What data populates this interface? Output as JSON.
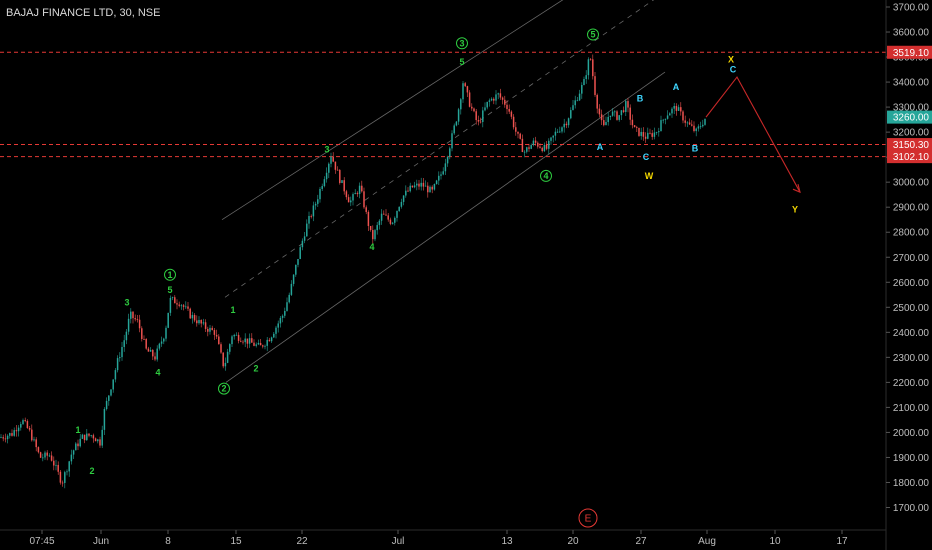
{
  "title": "BAJAJ FINANCE LTD, 30, NSE",
  "colors": {
    "background": "#000000",
    "up": "#26a69a",
    "down": "#ef5350",
    "price_tag": "#26a69a",
    "level_line": "#e53935",
    "level_tag": "#d32f2f",
    "channel": "#8a8a8a",
    "wave_green": "#2ecc40",
    "wave_yellow": "#f2d600",
    "wave_cyan": "#3fd6ff",
    "projection": "#c62828",
    "axis_text": "#bfbfbf"
  },
  "chart_data": {
    "type": "candlestick",
    "symbol": "BAJAJ FINANCE LTD",
    "interval": "30",
    "exchange": "NSE",
    "ylim": [
      1620,
      3760
    ],
    "y_ticks": [
      1700,
      1800,
      1900,
      2000,
      2100,
      2200,
      2300,
      2400,
      2500,
      2600,
      2700,
      2800,
      2900,
      3000,
      3100,
      3200,
      3300,
      3400,
      3500,
      3600,
      3700
    ],
    "y_tick_labels": [
      "1700.00",
      "1800.00",
      "1900.00",
      "2000.00",
      "2100.00",
      "2200.00",
      "2300.00",
      "2400.00",
      "2500.00",
      "2600.00",
      "2700.00",
      "2800.00",
      "2900.00",
      "3000.00",
      "3100.00",
      "3200.00",
      "3300.00",
      "3400.00",
      "3500.00",
      "3600.00",
      "3700.00"
    ],
    "x_labels": [
      "07:45",
      "Jun",
      "8",
      "15",
      "22",
      "Jul",
      "13",
      "20",
      "27",
      "Aug",
      "10",
      "17"
    ],
    "price_path": [
      [
        0,
        1980
      ],
      [
        12,
        1995
      ],
      [
        22,
        2050
      ],
      [
        30,
        2000
      ],
      [
        40,
        1900
      ],
      [
        50,
        1910
      ],
      [
        62,
        1800
      ],
      [
        72,
        1920
      ],
      [
        82,
        1980
      ],
      [
        92,
        1990
      ],
      [
        100,
        1960
      ],
      [
        104,
        2080
      ],
      [
        112,
        2200
      ],
      [
        118,
        2290
      ],
      [
        125,
        2380
      ],
      [
        130,
        2470
      ],
      [
        138,
        2440
      ],
      [
        146,
        2330
      ],
      [
        155,
        2300
      ],
      [
        165,
        2400
      ],
      [
        170,
        2530
      ],
      [
        180,
        2520
      ],
      [
        190,
        2470
      ],
      [
        205,
        2420
      ],
      [
        215,
        2400
      ],
      [
        224,
        2260
      ],
      [
        232,
        2390
      ],
      [
        240,
        2380
      ],
      [
        250,
        2360
      ],
      [
        260,
        2340
      ],
      [
        270,
        2380
      ],
      [
        283,
        2470
      ],
      [
        290,
        2560
      ],
      [
        298,
        2700
      ],
      [
        306,
        2820
      ],
      [
        316,
        2920
      ],
      [
        324,
        3020
      ],
      [
        331,
        3110
      ],
      [
        340,
        3010
      ],
      [
        350,
        2920
      ],
      [
        360,
        2980
      ],
      [
        372,
        2770
      ],
      [
        382,
        2870
      ],
      [
        392,
        2840
      ],
      [
        402,
        2940
      ],
      [
        412,
        2980
      ],
      [
        422,
        2990
      ],
      [
        432,
        2960
      ],
      [
        442,
        3040
      ],
      [
        450,
        3150
      ],
      [
        458,
        3280
      ],
      [
        463,
        3400
      ],
      [
        470,
        3310
      ],
      [
        478,
        3230
      ],
      [
        488,
        3320
      ],
      [
        498,
        3350
      ],
      [
        508,
        3300
      ],
      [
        516,
        3200
      ],
      [
        524,
        3120
      ],
      [
        534,
        3160
      ],
      [
        546,
        3130
      ],
      [
        556,
        3200
      ],
      [
        566,
        3240
      ],
      [
        576,
        3330
      ],
      [
        584,
        3400
      ],
      [
        590,
        3510
      ],
      [
        596,
        3330
      ],
      [
        603,
        3210
      ],
      [
        610,
        3280
      ],
      [
        618,
        3260
      ],
      [
        626,
        3310
      ],
      [
        634,
        3210
      ],
      [
        646,
        3180
      ],
      [
        656,
        3200
      ],
      [
        666,
        3270
      ],
      [
        676,
        3300
      ],
      [
        686,
        3240
      ],
      [
        696,
        3200
      ],
      [
        706,
        3260
      ]
    ],
    "last_price": 3260.0,
    "last_price_label": "3260.00",
    "levels": [
      {
        "value": 3519.1,
        "label": "3519.10"
      },
      {
        "value": 3150.3,
        "label": "3150.30"
      },
      {
        "value": 3102.1,
        "label": "3102.10"
      }
    ],
    "channel": {
      "upper": [
        [
          222,
          2850
        ],
        [
          575,
          3760
        ]
      ],
      "mid": [
        [
          225,
          2540
        ],
        [
          665,
          3760
        ]
      ],
      "lower": [
        [
          226,
          2200
        ],
        [
          665,
          3440
        ]
      ]
    },
    "projection": {
      "points": [
        [
          706,
          3260
        ],
        [
          737,
          3420
        ],
        [
          800,
          2960
        ]
      ]
    },
    "wave_labels": [
      {
        "text": "1",
        "x": 78,
        "price": 2010,
        "color": "green",
        "circled": false
      },
      {
        "text": "2",
        "x": 92,
        "price": 1845,
        "color": "green",
        "circled": false
      },
      {
        "text": "3",
        "x": 127,
        "price": 2520,
        "color": "green",
        "circled": false
      },
      {
        "text": "4",
        "x": 158,
        "price": 2240,
        "color": "green",
        "circled": false
      },
      {
        "text": "1",
        "x": 170,
        "price": 2630,
        "color": "green",
        "circled": true
      },
      {
        "text": "5",
        "x": 170,
        "price": 2570,
        "color": "green",
        "circled": false
      },
      {
        "text": "1",
        "x": 233,
        "price": 2490,
        "color": "green",
        "circled": false
      },
      {
        "text": "2",
        "x": 256,
        "price": 2255,
        "color": "green",
        "circled": false
      },
      {
        "text": "2",
        "x": 224,
        "price": 2175,
        "color": "green",
        "circled": true
      },
      {
        "text": "3",
        "x": 327,
        "price": 3130,
        "color": "green",
        "circled": false
      },
      {
        "text": "4",
        "x": 372,
        "price": 2740,
        "color": "green",
        "circled": false
      },
      {
        "text": "3",
        "x": 462,
        "price": 3555,
        "color": "green",
        "circled": true
      },
      {
        "text": "5",
        "x": 462,
        "price": 3480,
        "color": "green",
        "circled": false
      },
      {
        "text": "4",
        "x": 546,
        "price": 3025,
        "color": "green",
        "circled": true
      },
      {
        "text": "5",
        "x": 593,
        "price": 3590,
        "color": "green",
        "circled": true
      },
      {
        "text": "A",
        "x": 600,
        "price": 3140,
        "color": "cyan",
        "circled": false
      },
      {
        "text": "B",
        "x": 640,
        "price": 3335,
        "color": "cyan",
        "circled": false
      },
      {
        "text": "C",
        "x": 646,
        "price": 3100,
        "color": "cyan",
        "circled": false
      },
      {
        "text": "W",
        "x": 649,
        "price": 3025,
        "color": "yellow",
        "circled": false
      },
      {
        "text": "A",
        "x": 676,
        "price": 3380,
        "color": "cyan",
        "circled": false
      },
      {
        "text": "B",
        "x": 695,
        "price": 3135,
        "color": "cyan",
        "circled": false
      },
      {
        "text": "X",
        "x": 731,
        "price": 3490,
        "color": "yellow",
        "circled": false
      },
      {
        "text": "C",
        "x": 733,
        "price": 3450,
        "color": "cyan",
        "circled": false
      },
      {
        "text": "Y",
        "x": 795,
        "price": 2890,
        "color": "yellow",
        "circled": false
      }
    ]
  },
  "events": [
    {
      "text": "E",
      "color": "#e53935"
    }
  ]
}
